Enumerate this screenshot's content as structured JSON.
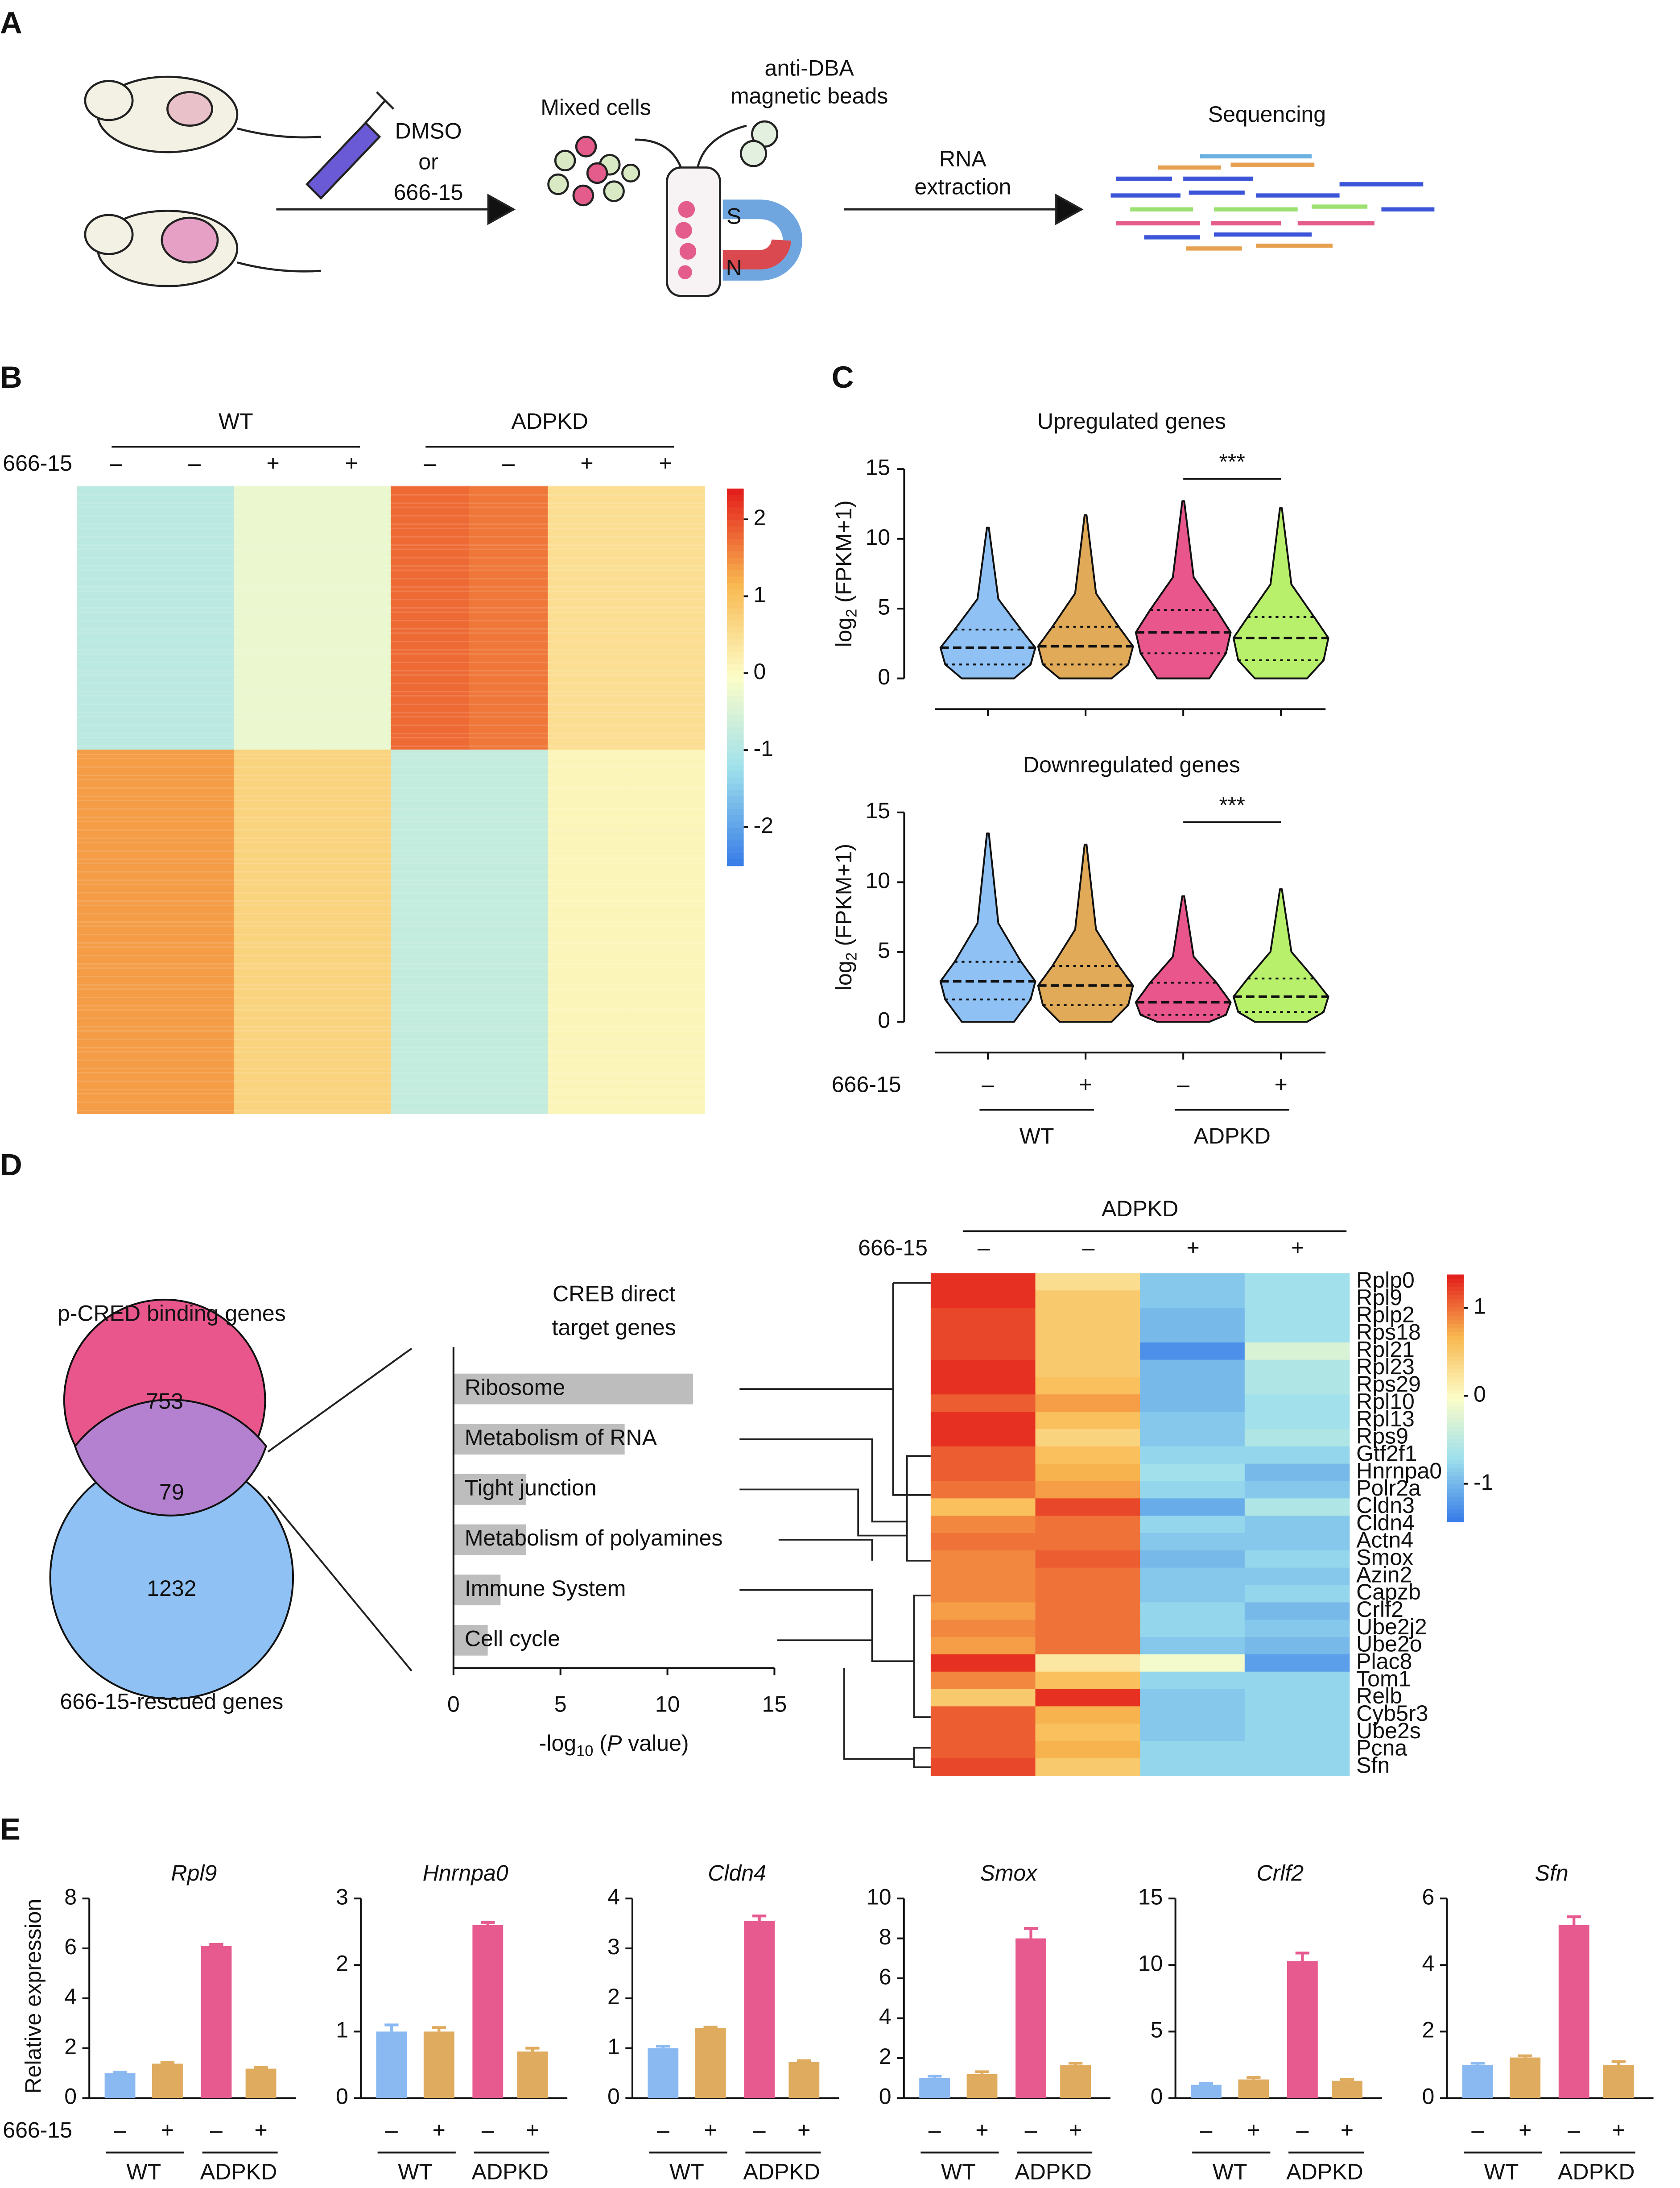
{
  "panel_labels": [
    "A",
    "B",
    "C",
    "D",
    "E"
  ],
  "schematic": {
    "treatment": [
      "DMSO",
      "or",
      "666-15"
    ],
    "mixed_cells": "Mixed cells",
    "beads": [
      "anti-DBA",
      "magnetic beads"
    ],
    "extraction": [
      "RNA",
      "extraction"
    ],
    "sequencing": "Sequencing",
    "magnet_poles": [
      "S",
      "N"
    ]
  },
  "venn": {
    "title": "p-CRED binding genes",
    "counts": [
      753,
      79,
      1232
    ],
    "subtitle": "666-15-rescued genes"
  },
  "chart_data": [
    {
      "type": "heatmap",
      "groups": [
        "WT",
        "ADPKD"
      ],
      "treatment_label": "666-15",
      "categories": [
        "–",
        "–",
        "+",
        "+",
        "–",
        "–",
        "+",
        "+"
      ],
      "rows": [
        [
          -0.9,
          -0.9,
          -0.3,
          -0.3,
          1.8,
          1.7,
          0.5,
          0.5
        ],
        [
          1.4,
          1.4,
          0.7,
          0.7,
          -0.8,
          -0.8,
          0.1,
          0.1
        ]
      ],
      "clim": [
        -2.5,
        2.4
      ],
      "cticks": [
        -2,
        -1,
        0,
        1,
        2
      ]
    },
    {
      "type": "violin",
      "title": "Upregulated genes",
      "ylabel": [
        "log",
        "2",
        " (FPKM+1)"
      ],
      "categories": [
        "–",
        "+",
        "–",
        "+"
      ],
      "colors": [
        "#8fc1f5",
        "#e0aa58",
        "#e8568c",
        "#b8f06c"
      ],
      "min": [
        0,
        0,
        0,
        0
      ],
      "q1": [
        1.0,
        1.0,
        1.8,
        1.3
      ],
      "median": [
        2.2,
        2.3,
        3.3,
        2.9
      ],
      "q3": [
        3.5,
        3.7,
        4.9,
        4.4
      ],
      "max": [
        10.8,
        11.7,
        12.7,
        12.2
      ],
      "ylim": [
        0,
        15
      ],
      "yticks": [
        0,
        5,
        10,
        15
      ],
      "annotation": "***"
    },
    {
      "type": "violin",
      "title": "Downregulated genes",
      "ylabel": [
        "log",
        "2",
        " (FPKM+1)"
      ],
      "treatment_label": "666-15",
      "groups": [
        "WT",
        "ADPKD"
      ],
      "categories": [
        "–",
        "+",
        "–",
        "+"
      ],
      "colors": [
        "#8fc1f5",
        "#e0aa58",
        "#e8568c",
        "#b8f06c"
      ],
      "min": [
        0,
        0,
        0,
        0
      ],
      "q1": [
        1.6,
        1.2,
        0.5,
        0.7
      ],
      "median": [
        2.9,
        2.6,
        1.4,
        1.8
      ],
      "q3": [
        4.3,
        4.0,
        2.8,
        3.1
      ],
      "max": [
        13.5,
        12.7,
        9.0,
        9.5
      ],
      "ylim": [
        0,
        15
      ],
      "yticks": [
        0,
        5,
        10,
        15
      ],
      "annotation": "***"
    },
    {
      "type": "hbar",
      "title": [
        "CREB direct",
        "target genes"
      ],
      "categories": [
        "Ribosome",
        "Metabolism of RNA",
        "Tight junction",
        "Metabolism of polyamines",
        "Immune System",
        "Cell cycle"
      ],
      "values": [
        11.2,
        8.0,
        3.4,
        3.4,
        2.2,
        1.6
      ],
      "color": "#bdbdbd",
      "xlim": [
        0,
        15
      ],
      "xticks": [
        0,
        5,
        10,
        15
      ],
      "xlabel": [
        "-log",
        "10",
        " (",
        "P",
        " value)"
      ]
    },
    {
      "type": "heatmap",
      "title": "ADPKD",
      "treatment_label": "666-15",
      "categories": [
        "–",
        "–",
        "+",
        "+"
      ],
      "row_labels": [
        "Rplp0",
        "Rpl9",
        "Rplp2",
        "Rps18",
        "Rpl21",
        "Rpl23",
        "Rps29",
        "Rpl10",
        "Rpl13",
        "Rps9",
        "Gtf2f1",
        "Hnrnpa0",
        "Polr2a",
        "Cldn3",
        "Cldn4",
        "Actn4",
        "Smox",
        "Azin2",
        "Capzb",
        "Crlf2",
        "Ube2j2",
        "Ube2o",
        "Plac8",
        "Tom1",
        "Relb",
        "Cyb5r3",
        "Ube2s",
        "Pcna",
        "Sfn"
      ],
      "rows": [
        [
          1.3,
          0.3,
          -0.9,
          -0.7
        ],
        [
          1.3,
          0.5,
          -0.9,
          -0.7
        ],
        [
          1.2,
          0.5,
          -1.0,
          -0.7
        ],
        [
          1.2,
          0.5,
          -1.0,
          -0.7
        ],
        [
          1.2,
          0.5,
          -1.3,
          -0.3
        ],
        [
          1.3,
          0.5,
          -1.0,
          -0.6
        ],
        [
          1.3,
          0.6,
          -1.0,
          -0.6
        ],
        [
          1.1,
          0.8,
          -1.0,
          -0.7
        ],
        [
          1.3,
          0.6,
          -0.9,
          -0.7
        ],
        [
          1.3,
          0.4,
          -0.9,
          -0.6
        ],
        [
          1.1,
          0.6,
          -0.8,
          -0.8
        ],
        [
          1.1,
          0.7,
          -0.7,
          -1.0
        ],
        [
          1.0,
          0.8,
          -0.8,
          -0.9
        ],
        [
          0.6,
          1.2,
          -1.1,
          -0.6
        ],
        [
          0.9,
          1.0,
          -0.8,
          -0.9
        ],
        [
          1.0,
          1.0,
          -0.9,
          -0.9
        ],
        [
          0.9,
          1.1,
          -1.0,
          -0.8
        ],
        [
          0.9,
          1.0,
          -0.9,
          -0.9
        ],
        [
          0.9,
          1.0,
          -0.9,
          -0.8
        ],
        [
          0.8,
          1.0,
          -0.8,
          -1.0
        ],
        [
          0.9,
          1.0,
          -0.8,
          -0.9
        ],
        [
          0.8,
          1.0,
          -0.9,
          -1.0
        ],
        [
          1.3,
          0.2,
          -0.1,
          -1.2
        ],
        [
          0.9,
          0.6,
          -0.8,
          -0.8
        ],
        [
          0.5,
          1.3,
          -0.9,
          -0.8
        ],
        [
          1.1,
          0.7,
          -0.9,
          -0.8
        ],
        [
          1.1,
          0.6,
          -0.9,
          -0.8
        ],
        [
          1.1,
          0.7,
          -0.8,
          -0.8
        ],
        [
          1.2,
          0.5,
          -0.8,
          -0.8
        ]
      ],
      "clim": [
        -1.43,
        1.38
      ],
      "cticks": [
        -1,
        0,
        1
      ]
    },
    {
      "type": "bar",
      "title": "Rpl9",
      "ylabel": "Relative expression",
      "treatment_label": "666-15",
      "categories": [
        "–",
        "+",
        "–",
        "+"
      ],
      "groups": [
        "WT",
        "ADPKD"
      ],
      "colors": [
        "#8ab9f2",
        "#dfab5e",
        "#e65a8f",
        "#dfab5e"
      ],
      "values": [
        1.0,
        1.38,
        6.1,
        1.18
      ],
      "errors": [
        0.04,
        0.04,
        0.06,
        0.05
      ],
      "ylim": [
        0,
        8
      ],
      "yticks": [
        0,
        2,
        4,
        6,
        8
      ]
    },
    {
      "type": "bar",
      "title": "Hnrnpa0",
      "categories": [
        "–",
        "+",
        "–",
        "+"
      ],
      "groups": [
        "WT",
        "ADPKD"
      ],
      "colors": [
        "#8ab9f2",
        "#dfab5e",
        "#e65a8f",
        "#dfab5e"
      ],
      "values": [
        1.0,
        1.0,
        2.6,
        0.7
      ],
      "errors": [
        0.1,
        0.06,
        0.04,
        0.05
      ],
      "ylim": [
        0,
        3
      ],
      "yticks": [
        0,
        1,
        2,
        3
      ]
    },
    {
      "type": "bar",
      "title": "Cldn4",
      "categories": [
        "–",
        "+",
        "–",
        "+"
      ],
      "groups": [
        "WT",
        "ADPKD"
      ],
      "colors": [
        "#8ab9f2",
        "#dfab5e",
        "#e65a8f",
        "#dfab5e"
      ],
      "values": [
        1.0,
        1.4,
        3.55,
        0.72
      ],
      "errors": [
        0.04,
        0.02,
        0.1,
        0.03
      ],
      "ylim": [
        0,
        4
      ],
      "yticks": [
        0,
        1,
        2,
        3,
        4
      ]
    },
    {
      "type": "bar",
      "title": "Smox",
      "categories": [
        "–",
        "+",
        "–",
        "+"
      ],
      "groups": [
        "WT",
        "ADPKD"
      ],
      "colors": [
        "#8ab9f2",
        "#dfab5e",
        "#e65a8f",
        "#dfab5e"
      ],
      "values": [
        1.0,
        1.2,
        8.0,
        1.65
      ],
      "errors": [
        0.1,
        0.12,
        0.5,
        0.1
      ],
      "ylim": [
        0,
        10
      ],
      "yticks": [
        0,
        2,
        4,
        6,
        8,
        10
      ]
    },
    {
      "type": "bar",
      "title": "Crlf2",
      "categories": [
        "–",
        "+",
        "–",
        "+"
      ],
      "groups": [
        "WT",
        "ADPKD"
      ],
      "colors": [
        "#8ab9f2",
        "#dfab5e",
        "#e65a8f",
        "#dfab5e"
      ],
      "values": [
        1.0,
        1.4,
        10.3,
        1.3
      ],
      "errors": [
        0.1,
        0.15,
        0.6,
        0.1
      ],
      "ylim": [
        0,
        15
      ],
      "yticks": [
        0,
        5,
        10,
        15
      ]
    },
    {
      "type": "bar",
      "title": "Sfn",
      "categories": [
        "–",
        "+",
        "–",
        "+"
      ],
      "groups": [
        "WT",
        "ADPKD"
      ],
      "colors": [
        "#8ab9f2",
        "#dfab5e",
        "#e65a8f",
        "#dfab5e"
      ],
      "values": [
        1.0,
        1.22,
        5.2,
        1.0
      ],
      "errors": [
        0.05,
        0.05,
        0.25,
        0.1
      ],
      "ylim": [
        0,
        6
      ],
      "yticks": [
        0,
        2,
        4,
        6
      ]
    }
  ]
}
